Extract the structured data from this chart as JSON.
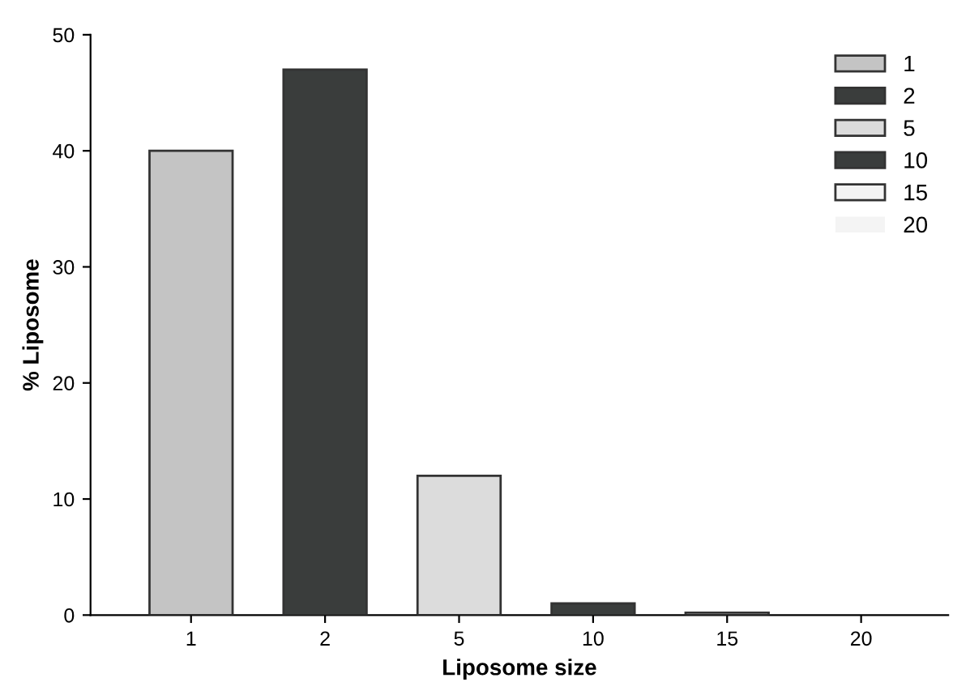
{
  "chart_data": {
    "type": "bar",
    "xlabel": "Liposome size",
    "ylabel": "% Liposome",
    "categories": [
      "1",
      "2",
      "5",
      "10",
      "15",
      "20"
    ],
    "series": [
      {
        "name": "1",
        "color": "#c4c4c4",
        "values": [
          40,
          null,
          null,
          null,
          null,
          null
        ]
      },
      {
        "name": "2",
        "color": "#3a3d3c",
        "values": [
          null,
          47,
          null,
          null,
          null,
          null
        ]
      },
      {
        "name": "5",
        "color": "#dcdcdc",
        "values": [
          null,
          null,
          12,
          null,
          null,
          null
        ]
      },
      {
        "name": "10",
        "color": "#3a3d3c",
        "values": [
          null,
          null,
          null,
          1,
          null,
          null
        ]
      },
      {
        "name": "15",
        "color": "#f4f4f4",
        "values": [
          null,
          null,
          null,
          null,
          0.2,
          null
        ]
      },
      {
        "name": "20",
        "color": "#f4f4f4",
        "values": [
          null,
          null,
          null,
          null,
          null,
          0
        ]
      }
    ],
    "ylim": [
      0,
      50
    ],
    "yticks": [
      0,
      10,
      20,
      30,
      40,
      50
    ],
    "grid": false,
    "legend": "top right"
  }
}
